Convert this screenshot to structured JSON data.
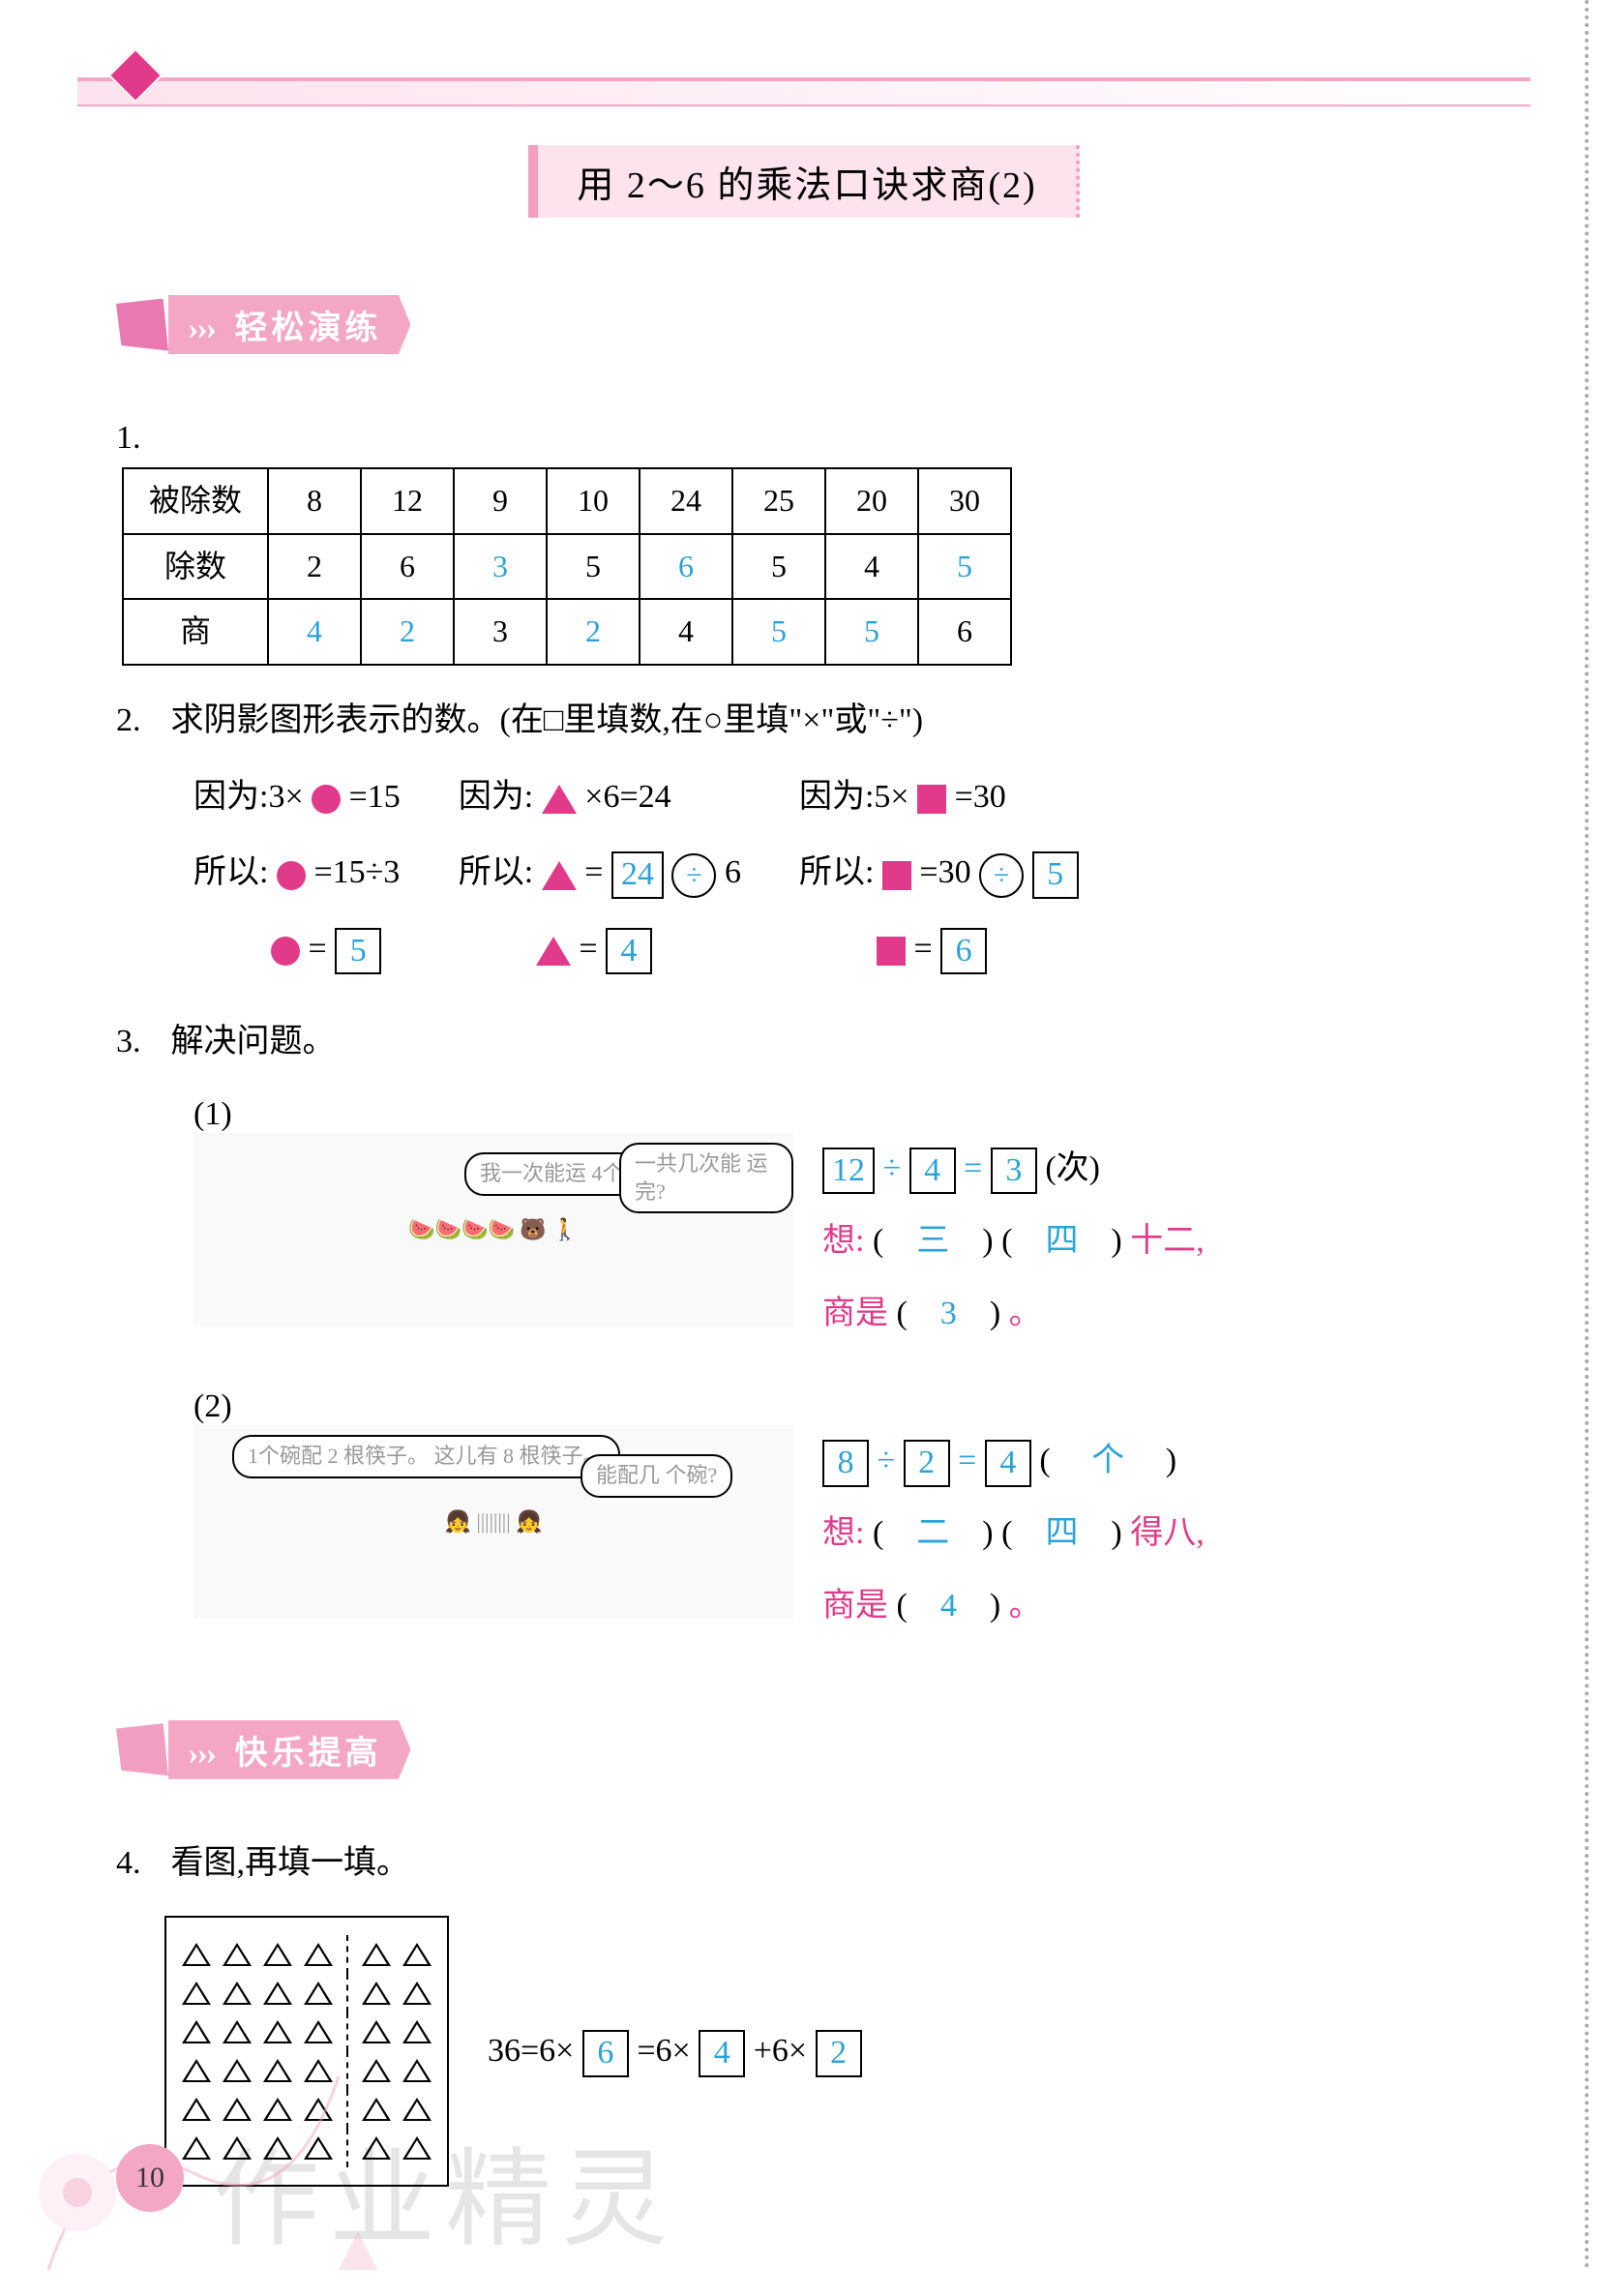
{
  "page_number": "10",
  "title": "用 2～6 的乘法口诀求商(2)",
  "colors": {
    "answer_blue": "#2aa3d9",
    "hint_magenta": "#e23a8a",
    "ribbon_pink": "#f4a7c4",
    "banner_bg": "#fde3ee",
    "shape_magenta": "#e23a8a"
  },
  "section1": {
    "ribbon_label": "轻松演练",
    "arrows": "›››"
  },
  "q1": {
    "num": "1.",
    "headers": [
      "被除数",
      "除数",
      "商"
    ],
    "cols": [
      {
        "dividend": "8",
        "divisor": "2",
        "quotient": "4",
        "d_blue": false,
        "v_blue": false,
        "q_blue": true
      },
      {
        "dividend": "12",
        "divisor": "6",
        "quotient": "2",
        "d_blue": false,
        "v_blue": false,
        "q_blue": true
      },
      {
        "dividend": "9",
        "divisor": "3",
        "quotient": "3",
        "d_blue": false,
        "v_blue": true,
        "q_blue": false
      },
      {
        "dividend": "10",
        "divisor": "5",
        "quotient": "2",
        "d_blue": false,
        "v_blue": false,
        "q_blue": true
      },
      {
        "dividend": "24",
        "divisor": "6",
        "quotient": "4",
        "d_blue": false,
        "v_blue": true,
        "q_blue": false
      },
      {
        "dividend": "25",
        "divisor": "5",
        "quotient": "5",
        "d_blue": false,
        "v_blue": false,
        "q_blue": true
      },
      {
        "dividend": "20",
        "divisor": "4",
        "quotient": "5",
        "d_blue": false,
        "v_blue": false,
        "q_blue": true
      },
      {
        "dividend": "30",
        "divisor": "5",
        "quotient": "6",
        "d_blue": false,
        "v_blue": true,
        "q_blue": false
      }
    ]
  },
  "q2": {
    "num": "2.",
    "stem": "求阴影图形表示的数。(在□里填数,在○里填\"×\"或\"÷\")",
    "colA": {
      "because_pre": "因为:3×",
      "because_post": "=15",
      "so_pre": "所以:",
      "so_post": "=15÷3",
      "result": "= ",
      "answer": "5"
    },
    "colB": {
      "because_pre": "因为:",
      "because_mid": "×6=24",
      "so_pre": "所以:",
      "so_eq": "= ",
      "lhs": "24",
      "op": "÷",
      "rhs": "6",
      "answer": "4"
    },
    "colC": {
      "because_pre": "因为:5×",
      "because_post": "=30",
      "so_pre": "所以:",
      "so_lhs": "=30",
      "op": "÷",
      "rhs": "5",
      "answer": "6"
    }
  },
  "q3": {
    "num": "3.",
    "stem": "解决问题。",
    "p1": {
      "label": "(1)",
      "bubble1": "我一次能运\n4个西瓜。",
      "bubble2": "一共几次能\n运完?",
      "eq": {
        "a": "12",
        "op": "÷",
        "b": "4",
        "eq": "=",
        "c": "3",
        "unit": "(次)"
      },
      "think_pre": "想:",
      "think_a": "三",
      "think_b": "四",
      "think_post": "十二,",
      "quot_pre": "商是",
      "quot": "3",
      "quot_post": "。"
    },
    "p2": {
      "label": "(2)",
      "bubble1": "1个碗配 2 根筷子。\n这儿有 8 根筷子。",
      "bubble2": "能配几\n个碗?",
      "eq": {
        "a": "8",
        "op": "÷",
        "b": "2",
        "eq": "=",
        "c": "4",
        "unit_ans": "个",
        "unit_wrap_l": "(",
        "unit_wrap_r": ")"
      },
      "think_pre": "想:",
      "think_a": "二",
      "think_b": "四",
      "think_post": "得八,",
      "quot_pre": "商是",
      "quot": "4",
      "quot_post": "。"
    }
  },
  "section2": {
    "ribbon_label": "快乐提高",
    "arrows": "›››"
  },
  "q4": {
    "num": "4.",
    "stem": "看图,再填一填。",
    "grid": {
      "rows": 6,
      "left_cols": 4,
      "right_cols": 2
    },
    "eq_pre": "36=6×",
    "a": "6",
    "eq_mid": "=6×",
    "b": "4",
    "eq_plus": "+6×",
    "c": "2"
  },
  "watermarks": {
    "wm1": "作业精灵",
    "wm2": "作业精灵"
  }
}
